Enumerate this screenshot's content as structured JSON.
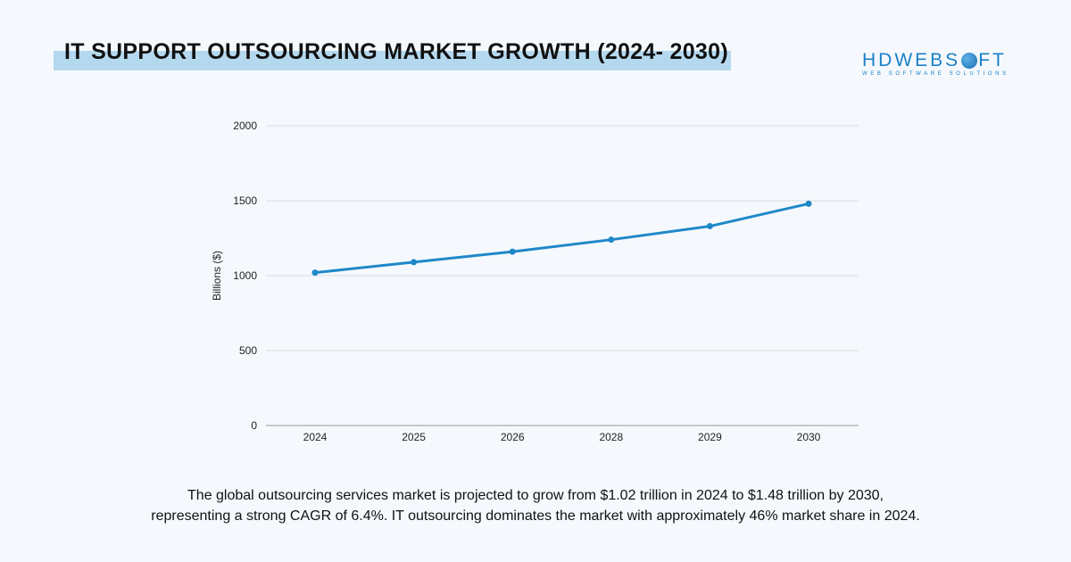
{
  "header": {
    "title": "IT SUPPORT OUTSOURCING MARKET GROWTH (2024- 2030)"
  },
  "logo": {
    "name": "HDWEBSOFT",
    "tagline": "WEB SOFTWARE SOLUTIONS",
    "brand_color": "#1a80c8"
  },
  "chart_data": {
    "type": "line",
    "categories": [
      "2024",
      "2025",
      "2026",
      "2028",
      "2029",
      "2030"
    ],
    "series": [
      {
        "values": [
          1020,
          1090,
          1160,
          1240,
          1330,
          1480
        ],
        "color": "#1f88c9"
      }
    ],
    "ylabel": "Billions ($)",
    "xlabel": "",
    "ylim": [
      0,
      2000
    ],
    "yticks": [
      "0",
      "500",
      "1000",
      "1500",
      "2000"
    ],
    "grid": true
  },
  "caption": {
    "line1": "The global outsourcing services market is projected to grow from $1.02 trillion in 2024 to $1.48 trillion by 2030,",
    "line2": "representing a strong CAGR of 6.4%. IT outsourcing dominates the market with approximately 46% market share in 2024."
  }
}
